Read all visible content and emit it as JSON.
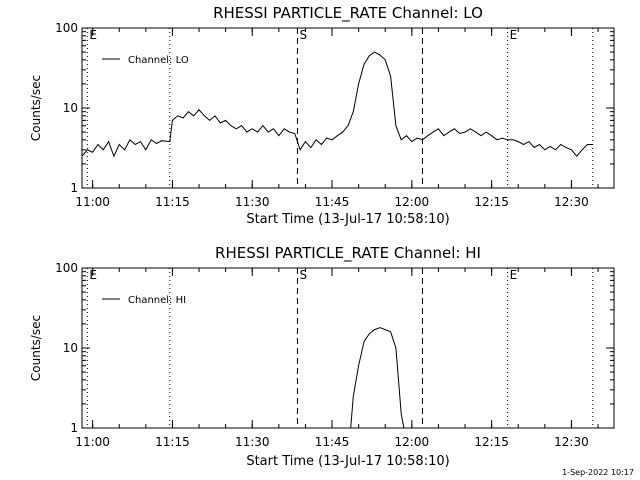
{
  "footer": {
    "timestamp": "1-Sep-2022 10:17"
  },
  "chart_data": [
    {
      "type": "line",
      "title": "RHESSI PARTICLE_RATE Channel: LO",
      "xlabel": "Start Time (13-Jul-17 10:58:10)",
      "ylabel": "Counts/sec",
      "yscale": "log",
      "ylim": [
        1,
        100
      ],
      "yticks": [
        1,
        10,
        100
      ],
      "ytick_labels": [
        "1",
        "10",
        "100"
      ],
      "xlim_min": [
        0,
        100
      ],
      "xticks_min": [
        2,
        17,
        32,
        47,
        62,
        77,
        92
      ],
      "xtick_labels": [
        "11:00",
        "11:15",
        "11:30",
        "11:45",
        "12:00",
        "12:15",
        "12:30"
      ],
      "legend": {
        "label": "Channel: LO",
        "position": "top-left"
      },
      "markers": [
        {
          "min": 1,
          "style": "dotted",
          "label": "E"
        },
        {
          "min": 16.5,
          "style": "dotted",
          "label": ""
        },
        {
          "min": 40.5,
          "style": "dashed",
          "label": "S"
        },
        {
          "min": 64,
          "style": "dashed",
          "label": ""
        },
        {
          "min": 80,
          "style": "dotted",
          "label": "E"
        },
        {
          "min": 96,
          "style": "dotted",
          "label": ""
        }
      ],
      "series": [
        {
          "name": "Channel: LO",
          "x": [
            0,
            1,
            2,
            3,
            4,
            5,
            6,
            7,
            8,
            9,
            10,
            11,
            12,
            13,
            14,
            15,
            16.5,
            17,
            18,
            19,
            20,
            21,
            22,
            23,
            24,
            25,
            26,
            27,
            28,
            29,
            30,
            31,
            32,
            33,
            34,
            35,
            36,
            37,
            38,
            39,
            40,
            41,
            42,
            43,
            44,
            45,
            46,
            47,
            48,
            49,
            50,
            51,
            52,
            53,
            54,
            55,
            56,
            57,
            58,
            59,
            60,
            61,
            62,
            63,
            64,
            65,
            66,
            67,
            68,
            69,
            70,
            71,
            72,
            73,
            74,
            75,
            76,
            77,
            78,
            79,
            80,
            81,
            82,
            83,
            84,
            85,
            86,
            87,
            88,
            89,
            90,
            91,
            92,
            93,
            94,
            95,
            96
          ],
          "y": [
            2.5,
            3,
            2.8,
            3.5,
            3,
            3.8,
            2.5,
            3.5,
            3,
            4,
            3.5,
            3.8,
            3,
            4,
            3.6,
            3.9,
            3.8,
            7,
            8,
            7.5,
            9,
            8,
            9.5,
            8,
            7,
            8,
            6.5,
            7,
            6,
            5.5,
            6,
            5,
            5.5,
            5,
            6,
            5,
            5.5,
            4.5,
            5.5,
            5,
            4.8,
            3,
            3.8,
            3.2,
            4,
            3.5,
            4.2,
            4,
            4.5,
            5,
            6,
            9,
            20,
            35,
            45,
            50,
            46,
            40,
            25,
            6,
            4,
            4.5,
            3.8,
            4.2,
            4,
            4.5,
            5,
            5.5,
            4.5,
            5,
            5.5,
            4.8,
            5,
            5.5,
            5,
            4.5,
            5,
            4.5,
            4,
            4.2,
            4,
            4,
            3.8,
            3.5,
            3.8,
            3.2,
            3.5,
            3,
            3.3,
            3,
            3.5,
            3.2,
            3,
            2.5,
            3,
            3.5,
            3.5
          ]
        }
      ]
    },
    {
      "type": "line",
      "title": "RHESSI PARTICLE_RATE Channel: HI",
      "xlabel": "Start Time (13-Jul-17 10:58:10)",
      "ylabel": "Counts/sec",
      "yscale": "log",
      "ylim": [
        1,
        100
      ],
      "yticks": [
        1,
        10,
        100
      ],
      "ytick_labels": [
        "1",
        "10",
        "100"
      ],
      "xlim_min": [
        0,
        100
      ],
      "xticks_min": [
        2,
        17,
        32,
        47,
        62,
        77,
        92
      ],
      "xtick_labels": [
        "11:00",
        "11:15",
        "11:30",
        "11:45",
        "12:00",
        "12:15",
        "12:30"
      ],
      "legend": {
        "label": "Channel: HI",
        "position": "top-left"
      },
      "markers": [
        {
          "min": 1,
          "style": "dotted",
          "label": "E"
        },
        {
          "min": 16.5,
          "style": "dotted",
          "label": ""
        },
        {
          "min": 40.5,
          "style": "dashed",
          "label": "S"
        },
        {
          "min": 64,
          "style": "dashed",
          "label": ""
        },
        {
          "min": 80,
          "style": "dotted",
          "label": "E"
        },
        {
          "min": 96,
          "style": "dotted",
          "label": ""
        }
      ],
      "series": [
        {
          "name": "Channel: HI",
          "x": [
            50.5,
            51,
            52,
            53,
            54,
            55,
            56,
            57,
            58,
            59,
            59.5,
            60,
            60.5
          ],
          "y": [
            1,
            2.5,
            6,
            12,
            15,
            17,
            18,
            17,
            16,
            10,
            4,
            1.5,
            1
          ]
        }
      ]
    }
  ]
}
